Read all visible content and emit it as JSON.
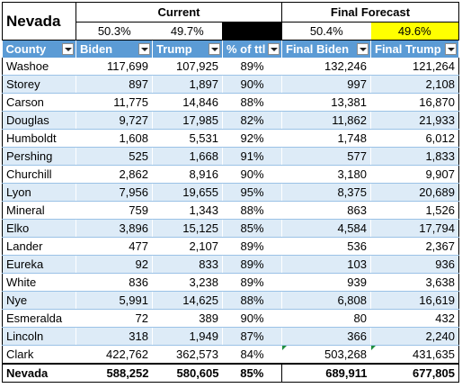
{
  "title": "Nevada",
  "groups": {
    "current": "Current",
    "final": "Final Forecast"
  },
  "pct": {
    "cur_biden": "50.3%",
    "cur_trump": "49.7%",
    "fin_biden": "50.4%",
    "fin_trump": "49.6%"
  },
  "columns": [
    "County",
    "Biden",
    "Trump",
    "% of ttl",
    "Final Biden",
    "Final Trump"
  ],
  "colors": {
    "header": "#5b9bd5",
    "band": "#ddebf7",
    "highlight": "#ffff00"
  },
  "rows": [
    [
      "Washoe",
      "117,699",
      "107,925",
      "89%",
      "132,246",
      "121,264"
    ],
    [
      "Storey",
      "897",
      "1,897",
      "90%",
      "997",
      "2,108"
    ],
    [
      "Carson",
      "11,775",
      "14,846",
      "88%",
      "13,381",
      "16,870"
    ],
    [
      "Douglas",
      "9,727",
      "17,985",
      "82%",
      "11,862",
      "21,933"
    ],
    [
      "Humboldt",
      "1,608",
      "5,531",
      "92%",
      "1,748",
      "6,012"
    ],
    [
      "Pershing",
      "525",
      "1,668",
      "91%",
      "577",
      "1,833"
    ],
    [
      "Churchill",
      "2,862",
      "8,916",
      "90%",
      "3,180",
      "9,907"
    ],
    [
      "Lyon",
      "7,956",
      "19,655",
      "95%",
      "8,375",
      "20,689"
    ],
    [
      "Mineral",
      "759",
      "1,343",
      "88%",
      "863",
      "1,526"
    ],
    [
      "Elko",
      "3,896",
      "15,125",
      "85%",
      "4,584",
      "17,794"
    ],
    [
      "Lander",
      "477",
      "2,107",
      "89%",
      "536",
      "2,367"
    ],
    [
      "Eureka",
      "92",
      "833",
      "89%",
      "103",
      "936"
    ],
    [
      "White",
      "836",
      "3,238",
      "89%",
      "939",
      "3,638"
    ],
    [
      "Nye",
      "5,991",
      "14,625",
      "88%",
      "6,808",
      "16,619"
    ],
    [
      "Esmeralda",
      "72",
      "389",
      "90%",
      "80",
      "432"
    ],
    [
      "Lincoln",
      "318",
      "1,949",
      "87%",
      "366",
      "2,240"
    ],
    [
      "Clark",
      "422,762",
      "362,573",
      "84%",
      "503,268",
      "431,635"
    ]
  ],
  "total": [
    "Nevada",
    "588,252",
    "580,605",
    "85%",
    "689,911",
    "677,805"
  ]
}
